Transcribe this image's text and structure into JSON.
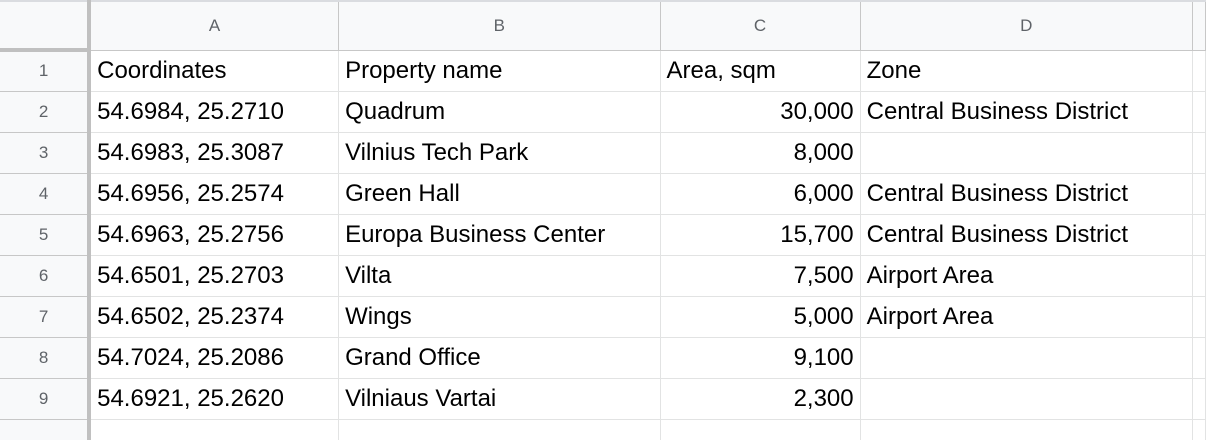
{
  "columns": [
    "A",
    "B",
    "C",
    "D"
  ],
  "rows": [
    {
      "num": "1",
      "cells": [
        "Coordinates",
        "Property name",
        "Area, sqm",
        "Zone"
      ]
    },
    {
      "num": "2",
      "cells": [
        "54.6984, 25.2710",
        "Quadrum",
        "30,000",
        "Central Business District"
      ]
    },
    {
      "num": "3",
      "cells": [
        "54.6983, 25.3087",
        "Vilnius Tech Park",
        "8,000",
        ""
      ]
    },
    {
      "num": "4",
      "cells": [
        "54.6956, 25.2574",
        "Green Hall",
        "6,000",
        "Central Business District"
      ]
    },
    {
      "num": "5",
      "cells": [
        "54.6963, 25.2756",
        "Europa Business Center",
        "15,700",
        "Central Business District"
      ]
    },
    {
      "num": "6",
      "cells": [
        "54.6501, 25.2703",
        "Vilta",
        "7,500",
        "Airport Area"
      ]
    },
    {
      "num": "7",
      "cells": [
        "54.6502, 25.2374",
        "Wings",
        "5,000",
        "Airport Area"
      ]
    },
    {
      "num": "8",
      "cells": [
        "54.7024, 25.2086",
        "Grand Office",
        "9,100",
        ""
      ]
    },
    {
      "num": "9",
      "cells": [
        "54.6921, 25.2620",
        "Vilniaus Vartai",
        "2,300",
        ""
      ]
    }
  ]
}
